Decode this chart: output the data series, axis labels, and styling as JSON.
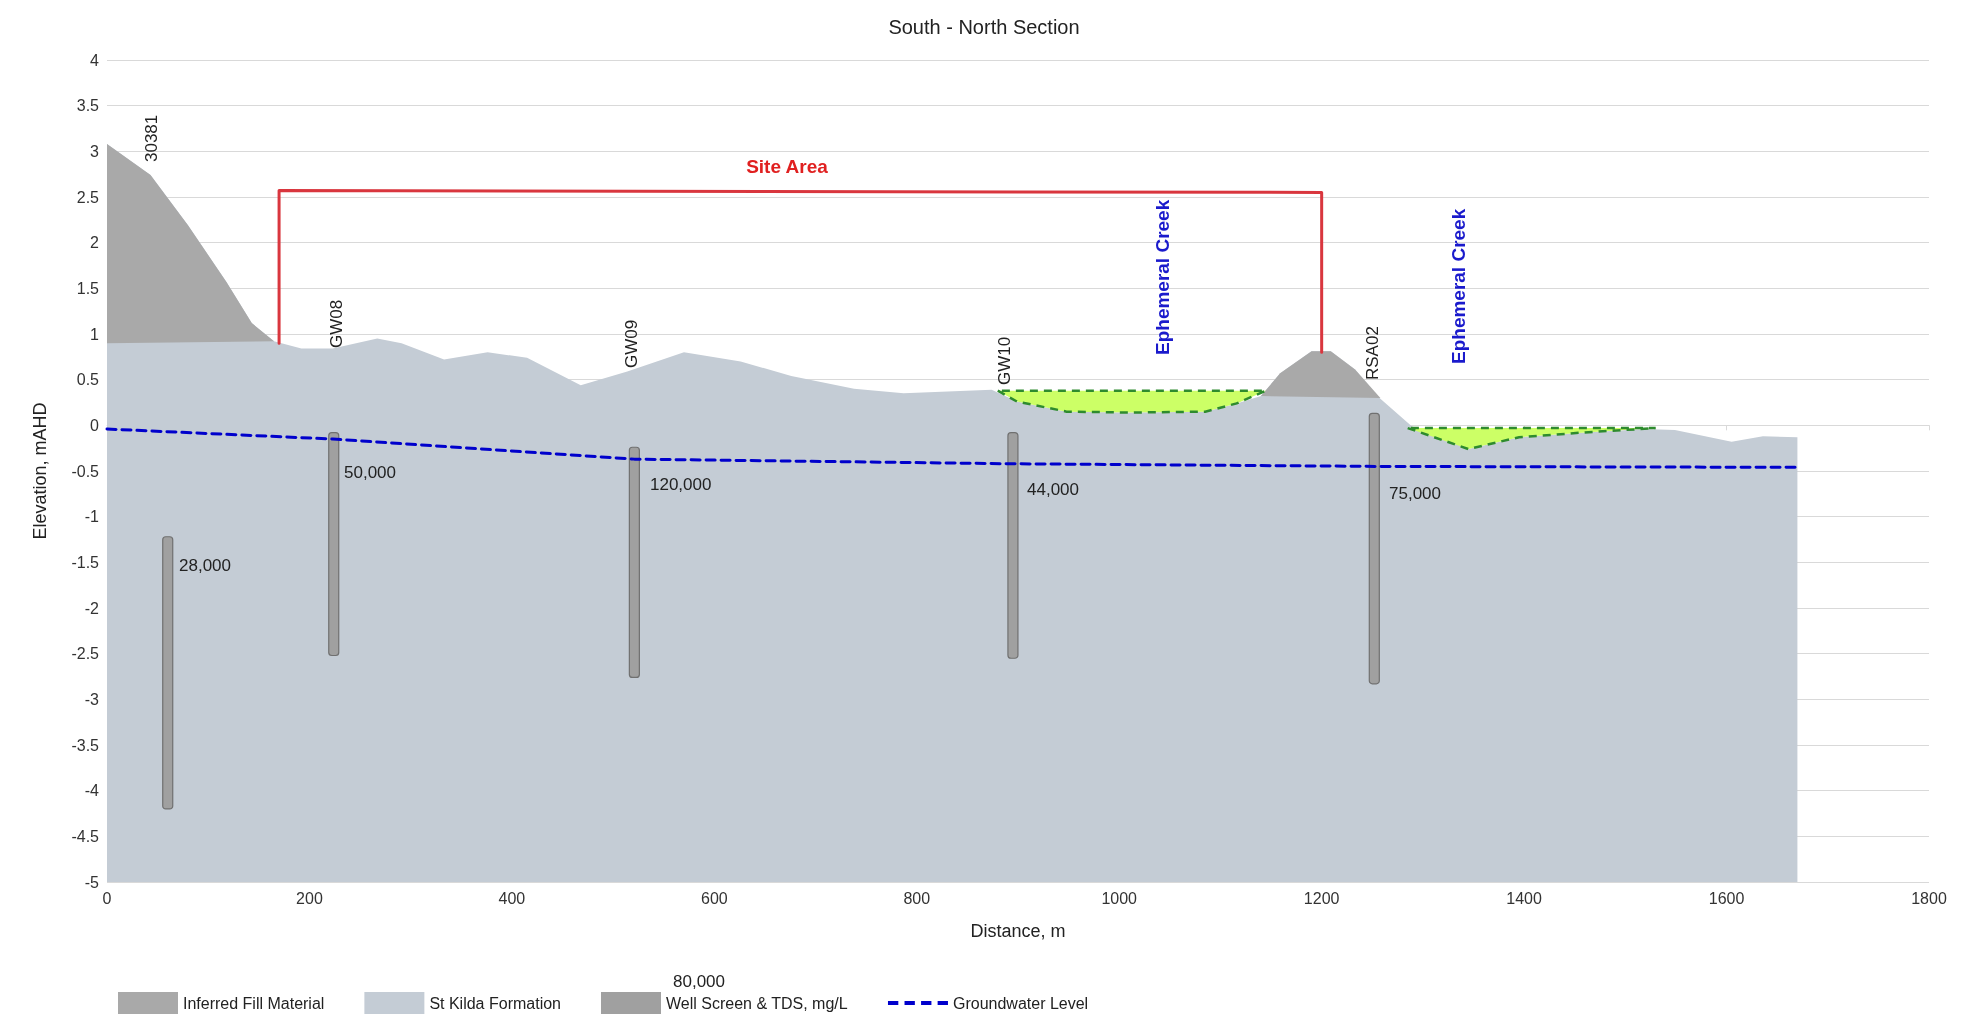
{
  "chart_data": {
    "type": "area",
    "title": "South - North Section",
    "xlabel": "Distance, m",
    "ylabel": "Elevation, mAHD",
    "xlim": [
      0,
      1800
    ],
    "xticks": [
      0,
      200,
      400,
      600,
      800,
      1000,
      1200,
      1400,
      1600,
      1800
    ],
    "ylim": [
      -5,
      4
    ],
    "yticks": [
      -5,
      -4.5,
      -4,
      -3.5,
      -3,
      -2.5,
      -2,
      -1.5,
      -1,
      -0.5,
      0,
      0.5,
      1,
      1.5,
      2,
      2.5,
      3,
      3.5,
      4
    ],
    "grid": "y",
    "legend": "bottom",
    "marker": "none",
    "series": [
      {
        "name": "Inferred Fill Material",
        "type": "area",
        "color": "#a9a9a9",
        "x": [
          0,
          43,
          80,
          118,
          143,
          165,
          0,
          0
        ],
        "values": [
          3.08,
          2.74,
          2.19,
          1.57,
          1.12,
          0.92,
          0.9,
          3.08
        ]
      },
      {
        "name": "St Kilda Formation",
        "type": "area",
        "color": "#c4ccd5",
        "x": [
          0,
          43,
          80,
          118,
          143,
          165,
          192,
          223,
          267,
          291,
          333,
          376,
          415,
          468,
          514,
          570,
          626,
          676,
          738,
          787,
          874,
          899,
          948,
          1010,
          1085,
          1116,
          1140,
          1159,
          1190,
          1209,
          1233,
          1258,
          1289,
          1345,
          1395,
          1457,
          1519,
          1549,
          1605,
          1636,
          1670,
          1670,
          0,
          0
        ],
        "values": [
          3.08,
          2.74,
          2.19,
          1.57,
          1.12,
          0.92,
          0.84,
          0.84,
          0.95,
          0.9,
          0.72,
          0.8,
          0.74,
          0.44,
          0.59,
          0.8,
          0.7,
          0.54,
          0.4,
          0.35,
          0.39,
          0.26,
          0.15,
          0.14,
          0.15,
          0.24,
          0.32,
          0.57,
          0.81,
          0.81,
          0.61,
          0.29,
          -0.01,
          -0.26,
          -0.13,
          -0.08,
          -0.04,
          -0.05,
          -0.18,
          -0.12,
          -0.13,
          -5,
          -5,
          3.08
        ]
      },
      {
        "color": "#a9a9a9",
        "x": [
          1140,
          1159,
          1190,
          1209,
          1233,
          1258,
          1140
        ],
        "values": [
          0.32,
          0.57,
          0.81,
          0.81,
          0.61,
          0.3,
          0.32
        ]
      },
      {
        "color": "#ccff66",
        "line_style": "dashed",
        "x": [
          880,
          899,
          948,
          1010,
          1085,
          1116,
          1145,
          880
        ],
        "values": [
          0.38,
          0.26,
          0.15,
          0.14,
          0.15,
          0.24,
          0.38,
          0.38
        ]
      },
      {
        "color": "#ccff66",
        "line_style": "dashed",
        "x": [
          1285,
          1345,
          1395,
          1457,
          1530,
          1285
        ],
        "values": [
          -0.03,
          -0.26,
          -0.13,
          -0.08,
          -0.03,
          -0.03
        ]
      },
      {
        "type": "line",
        "color": "#d9363e",
        "x": [
          170,
          170,
          1200,
          1200
        ],
        "values": [
          0.9,
          2.57,
          2.55,
          0.8
        ]
      },
      {
        "name": "Well Screen & TDS, mg/L",
        "type": "bar",
        "color": "#a0a0a0",
        "x": [
          60,
          224,
          521,
          895,
          1252
        ],
        "base": [
          -4.2,
          -2.52,
          -2.76,
          -2.55,
          -2.83
        ],
        "values": [
          2.98,
          2.44,
          2.52,
          2.47,
          2.96
        ]
      },
      {
        "name": "Groundwater Level",
        "type": "line",
        "color": "#0000cc",
        "line_style": "dashed",
        "x": [
          0,
          223,
          521,
          886,
          1258,
          1673
        ],
        "values": [
          -0.04,
          -0.15,
          -0.37,
          -0.42,
          -0.45,
          -0.46
        ]
      }
    ],
    "annotations": [
      "30381",
      "GW08",
      "GW09",
      "GW10",
      "RSA02",
      "Site Area",
      "Ephemeral Creek",
      "Ephemeral Creek",
      "28,000",
      "50,000",
      "120,000",
      "44,000",
      "75,000",
      "80,000"
    ]
  }
}
